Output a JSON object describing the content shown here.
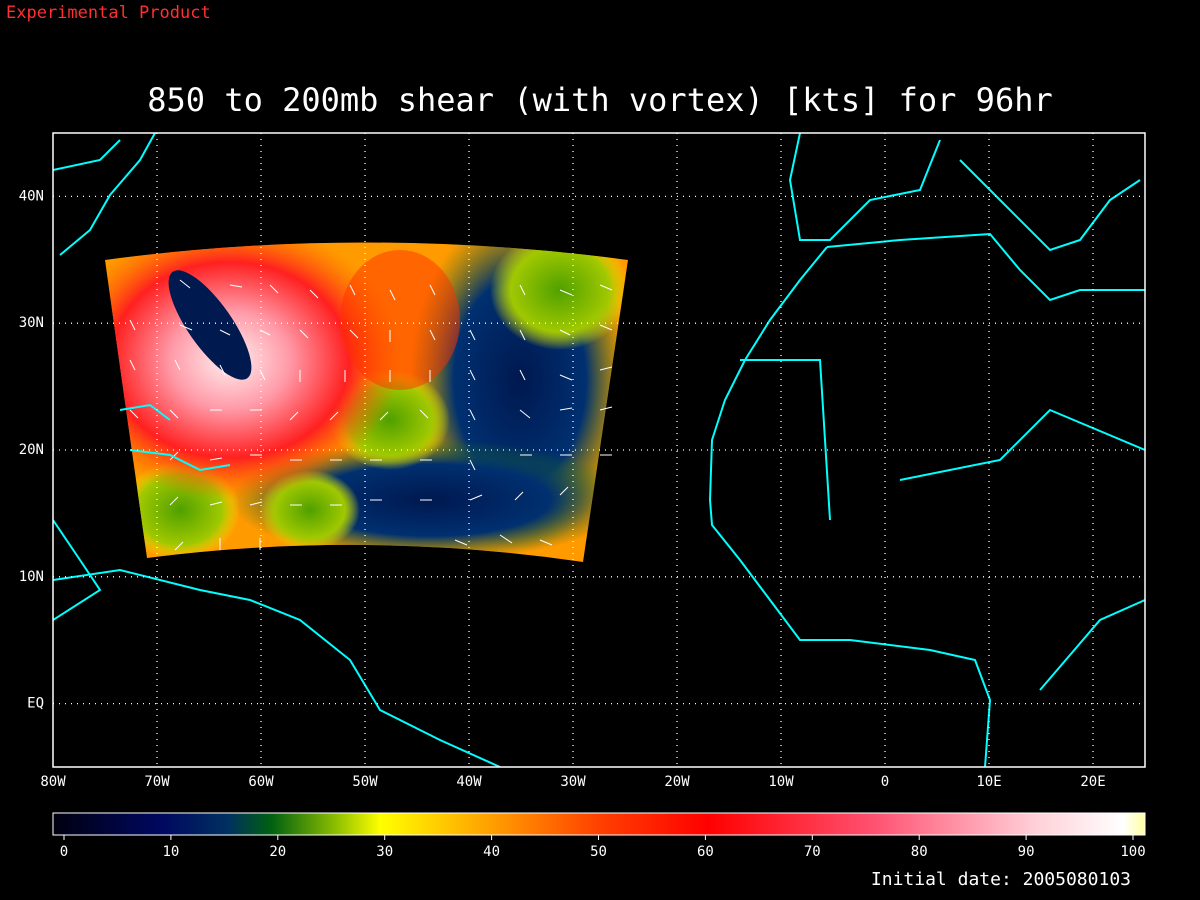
{
  "header": {
    "product": "Experimental Product",
    "title": "850 to 200mb shear (with vortex) [kts] for 96hr",
    "initial_date": "Initial date: 2005080103"
  },
  "map": {
    "xlim": [
      -80,
      25
    ],
    "ylim": [
      -5,
      45
    ],
    "xticks": [
      {
        "value": -80,
        "label": "80W"
      },
      {
        "value": -70,
        "label": "70W"
      },
      {
        "value": -60,
        "label": "60W"
      },
      {
        "value": -50,
        "label": "50W"
      },
      {
        "value": -40,
        "label": "40W"
      },
      {
        "value": -30,
        "label": "30W"
      },
      {
        "value": -20,
        "label": "20W"
      },
      {
        "value": -10,
        "label": "10W"
      },
      0,
      {
        "value": 10,
        "label": "10E"
      },
      {
        "value": 20,
        "label": "20E"
      }
    ],
    "yticks": [
      {
        "value": 0,
        "label": "EQ"
      },
      {
        "value": 10,
        "label": "10N"
      },
      {
        "value": 20,
        "label": "20N"
      },
      {
        "value": 30,
        "label": "30N"
      },
      {
        "value": 40,
        "label": "40N"
      }
    ]
  },
  "colorbar": {
    "lim": [
      0,
      100
    ],
    "ticks": [
      0,
      10,
      20,
      30,
      40,
      50,
      60,
      70,
      80,
      90,
      100
    ]
  }
}
